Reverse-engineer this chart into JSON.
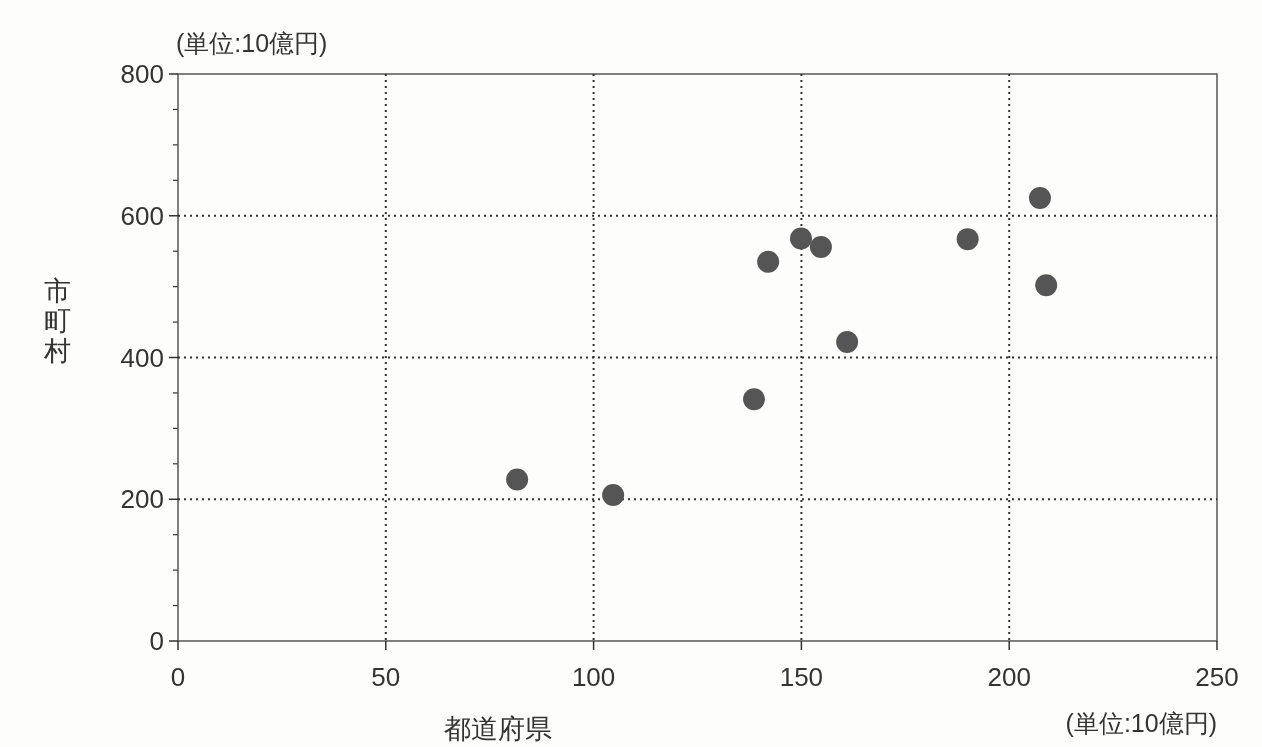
{
  "chart_data": {
    "type": "scatter",
    "xlabel": "都道府県",
    "ylabel": "市町村",
    "annotations": [
      "(単位:10億円)",
      "(単位:10億円)"
    ],
    "x": [
      81.6,
      104.7,
      138.6,
      142,
      149.9,
      154.7,
      161,
      190,
      207.4,
      208.9
    ],
    "series": [
      {
        "color": "#555555",
        "values": [
          228,
          206,
          341,
          535,
          568,
          556,
          422,
          567,
          625,
          502
        ]
      }
    ],
    "xlim": [
      0,
      250
    ],
    "ylim": [
      0,
      800
    ],
    "xticks": [
      0,
      50,
      100,
      150,
      200,
      250
    ],
    "yticks": [
      0,
      200,
      400,
      600,
      800
    ],
    "grid": true,
    "marker": "circle"
  }
}
